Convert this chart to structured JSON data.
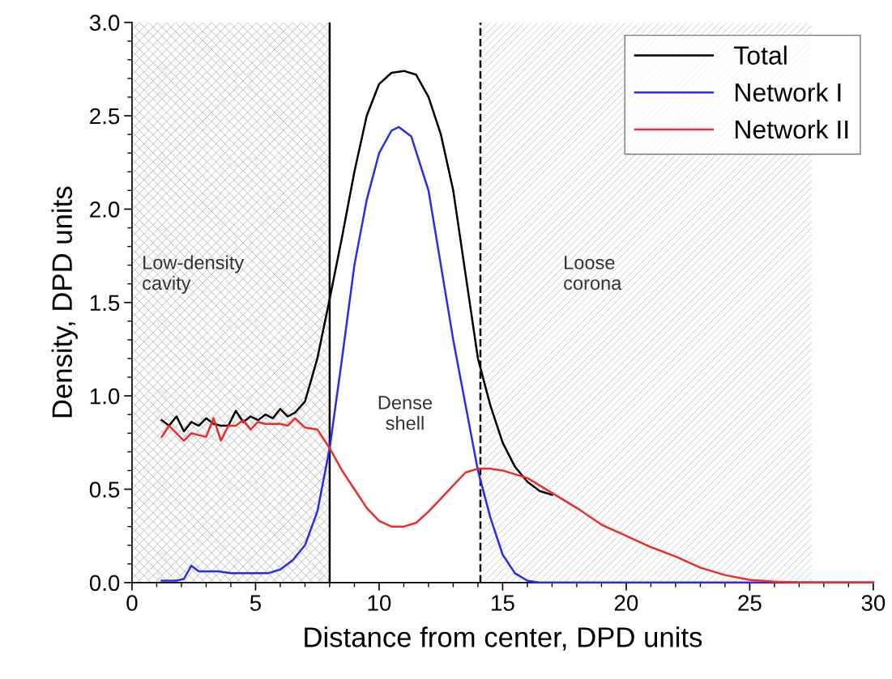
{
  "chart_data": {
    "type": "line",
    "xlabel": "Distance from center, DPD units",
    "ylabel": "Density, DPD units",
    "xlim": [
      0,
      30
    ],
    "ylim": [
      0,
      3.0
    ],
    "xticks": [
      0,
      5,
      10,
      15,
      20,
      25,
      30
    ],
    "yticks": [
      {
        "value": 0,
        "label": "0.0"
      },
      {
        "value": 0.5,
        "label": "0.5"
      },
      {
        "value": 1,
        "label": "1.0"
      },
      {
        "value": 1.5,
        "label": "1.5"
      },
      {
        "value": 2,
        "label": "2.0"
      },
      {
        "value": 2.5,
        "label": "2.5"
      },
      {
        "value": 3,
        "label": "3.0"
      }
    ],
    "grid": false,
    "legend": "top right",
    "marker": "none",
    "line_style": "solid",
    "series": [
      {
        "name": "Total",
        "color": "#000000",
        "x": [
          1.2,
          1.5,
          1.8,
          2.1,
          2.4,
          2.7,
          3.0,
          3.3,
          3.6,
          3.9,
          4.2,
          4.5,
          4.8,
          5.1,
          5.4,
          5.7,
          6.0,
          6.3,
          6.6,
          7.0,
          7.5,
          8.0,
          8.5,
          9.0,
          9.5,
          10.0,
          10.5,
          11.0,
          11.5,
          12.0,
          12.5,
          13.0,
          13.5,
          14.0,
          14.5,
          15.0,
          15.5,
          16.0,
          16.5,
          17.0
        ],
        "values": [
          0.87,
          0.84,
          0.89,
          0.81,
          0.86,
          0.84,
          0.88,
          0.85,
          0.84,
          0.84,
          0.92,
          0.86,
          0.89,
          0.87,
          0.9,
          0.88,
          0.93,
          0.89,
          0.91,
          0.97,
          1.2,
          1.52,
          1.85,
          2.2,
          2.5,
          2.67,
          2.73,
          2.74,
          2.72,
          2.6,
          2.4,
          2.1,
          1.65,
          1.2,
          0.95,
          0.75,
          0.62,
          0.54,
          0.49,
          0.47
        ]
      },
      {
        "name": "Network I",
        "color": "#2b2bf0",
        "x": [
          1.2,
          1.5,
          1.8,
          2.1,
          2.4,
          2.7,
          3.0,
          3.5,
          4.0,
          4.5,
          5.0,
          5.5,
          6.0,
          6.5,
          7.0,
          7.5,
          8.0,
          8.5,
          9.0,
          9.5,
          10.0,
          10.5,
          10.8,
          11.3,
          12.0,
          12.5,
          13.0,
          13.5,
          14.0,
          14.5,
          15.0,
          15.5,
          16.0,
          16.5,
          18.0,
          20.0,
          25.0,
          30.0
        ],
        "values": [
          0.01,
          0.01,
          0.01,
          0.02,
          0.09,
          0.06,
          0.06,
          0.06,
          0.05,
          0.05,
          0.05,
          0.05,
          0.07,
          0.12,
          0.2,
          0.38,
          0.72,
          1.2,
          1.7,
          2.05,
          2.3,
          2.42,
          2.44,
          2.39,
          2.1,
          1.7,
          1.3,
          0.95,
          0.6,
          0.35,
          0.15,
          0.05,
          0.01,
          0,
          0,
          0,
          0,
          0
        ]
      },
      {
        "name": "Network II",
        "color": "#ee2b2b",
        "x": [
          1.2,
          1.5,
          1.8,
          2.1,
          2.4,
          2.7,
          3.0,
          3.3,
          3.6,
          3.9,
          4.2,
          4.5,
          4.8,
          5.1,
          5.4,
          5.7,
          6.0,
          6.3,
          6.6,
          7.0,
          7.5,
          8.0,
          8.5,
          9.0,
          9.5,
          10.0,
          10.5,
          11.0,
          11.5,
          12.0,
          12.5,
          13.0,
          13.5,
          14.0,
          14.5,
          15.0,
          16.0,
          17.0,
          18.0,
          19.0,
          20.0,
          21.0,
          22.0,
          23.0,
          24.0,
          25.0,
          26.0,
          27.0,
          28.0,
          29.0,
          30.0
        ],
        "values": [
          0.78,
          0.84,
          0.8,
          0.76,
          0.8,
          0.79,
          0.78,
          0.88,
          0.76,
          0.84,
          0.84,
          0.87,
          0.82,
          0.86,
          0.85,
          0.85,
          0.85,
          0.84,
          0.88,
          0.83,
          0.82,
          0.72,
          0.6,
          0.5,
          0.4,
          0.33,
          0.3,
          0.3,
          0.32,
          0.38,
          0.45,
          0.52,
          0.59,
          0.61,
          0.61,
          0.6,
          0.56,
          0.48,
          0.4,
          0.31,
          0.25,
          0.19,
          0.14,
          0.08,
          0.04,
          0.015,
          0.005,
          0,
          0,
          0,
          0
        ]
      }
    ],
    "bands": [
      {
        "axis": "x",
        "from": 0,
        "to": 8,
        "label": "Low-density\ncavity",
        "color": "#b0b0b0"
      },
      {
        "axis": "x",
        "from": 14.1,
        "to": 27.5,
        "label": "Loose\ncorona",
        "color": "#c0c0c0"
      }
    ],
    "ref_lines": [
      {
        "axis": "x",
        "value": 8,
        "color": "#000000",
        "line_style": "solid"
      },
      {
        "axis": "x",
        "value": 14.1,
        "color": "#000000",
        "line_style": "dashed"
      }
    ],
    "annotations": [
      "Dense\nshell"
    ]
  }
}
